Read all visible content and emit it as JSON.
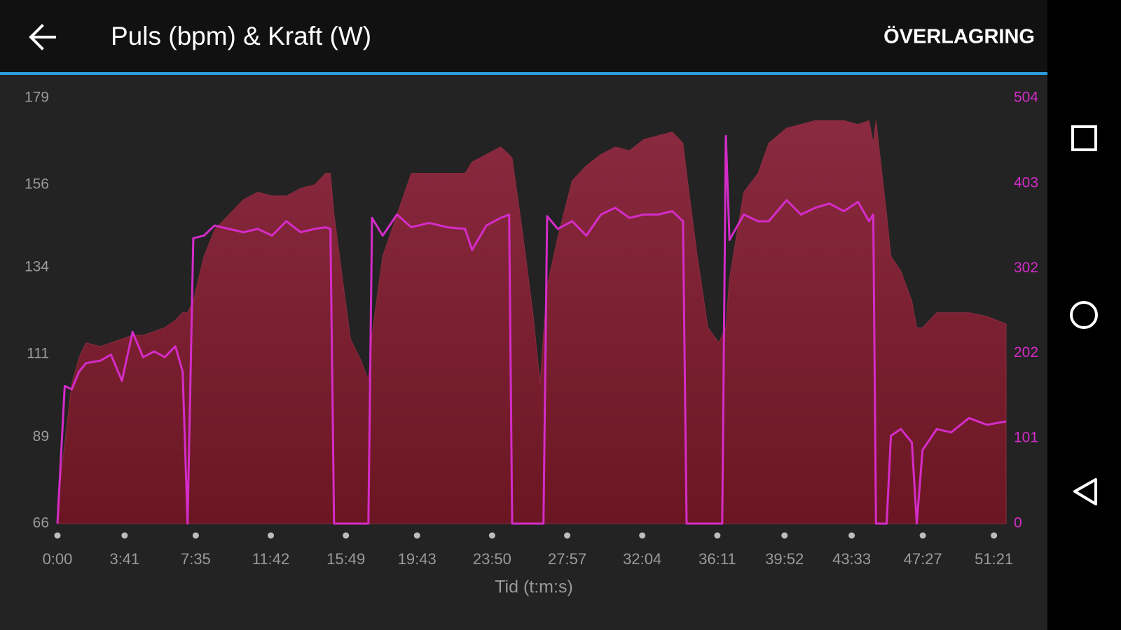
{
  "header": {
    "action": "ÖVERLAGRING"
  },
  "chart_data": {
    "type": "line",
    "title": "Puls (bpm) & Kraft (W)",
    "xlabel": "Tid (t:m:s)",
    "x": [
      0,
      24,
      47,
      71,
      94,
      141,
      176,
      212,
      247,
      282,
      318,
      353,
      388,
      412,
      428,
      447,
      482,
      517,
      564,
      612,
      659,
      706,
      753,
      800,
      847,
      882,
      898,
      910,
      941,
      964,
      1000,
      1023,
      1035,
      1070,
      1117,
      1164,
      1223,
      1282,
      1341,
      1364,
      1411,
      1458,
      1486,
      1496,
      1529,
      1564,
      1588,
      1599,
      1611,
      1646,
      1693,
      1740,
      1788,
      1835,
      1882,
      1929,
      1976,
      2023,
      2058,
      2070,
      2105,
      2140,
      2176,
      2187,
      2199,
      2211,
      2258,
      2305,
      2340,
      2399,
      2446,
      2493,
      2540,
      2587,
      2634,
      2670,
      2684,
      2693,
      2728,
      2742,
      2775,
      2811,
      2827,
      2846,
      2893,
      2940,
      2999,
      3058,
      3121
    ],
    "series": [
      {
        "type": "area",
        "color": "#8d2b42",
        "fill": [
          "#8a2a40",
          "#6b1622"
        ],
        "values": [
          71,
          87,
          103,
          110,
          114,
          113,
          114,
          115,
          116,
          116,
          117,
          118,
          120,
          122,
          122,
          125,
          137,
          144,
          148,
          152,
          154,
          153,
          153,
          155,
          156,
          159,
          159,
          148,
          129,
          115,
          109,
          104,
          116,
          137,
          148,
          159,
          159,
          159,
          159,
          162,
          164,
          166,
          164,
          163,
          144,
          122,
          103,
          116,
          129,
          142,
          157,
          161,
          164,
          166,
          165,
          168,
          169,
          170,
          167,
          159,
          137,
          118,
          114,
          116,
          118,
          131,
          154,
          159,
          167,
          171,
          172,
          173,
          173,
          173,
          172,
          173,
          167,
          173,
          148,
          137,
          133,
          125,
          118,
          118,
          122,
          122,
          122,
          121,
          119
        ]
      },
      {
        "type": "line",
        "axis": "y2",
        "color": "#d42cc8",
        "values": [
          0,
          163,
          159,
          180,
          190,
          193,
          200,
          169,
          227,
          197,
          204,
          197,
          210,
          180,
          0,
          338,
          341,
          353,
          349,
          345,
          349,
          341,
          358,
          345,
          349,
          351,
          349,
          0,
          0,
          0,
          0,
          0,
          362,
          341,
          366,
          351,
          356,
          351,
          349,
          324,
          353,
          362,
          366,
          0,
          0,
          0,
          0,
          0,
          364,
          349,
          358,
          341,
          366,
          374,
          362,
          366,
          366,
          370,
          358,
          0,
          0,
          0,
          0,
          0,
          459,
          336,
          366,
          358,
          358,
          383,
          366,
          374,
          379,
          370,
          381,
          358,
          366,
          0,
          0,
          104,
          112,
          96,
          0,
          87,
          112,
          108,
          125,
          117,
          121
        ]
      }
    ],
    "xlim": [
      0,
      3121
    ],
    "xticks": [
      {
        "value": 0,
        "label": "0:00"
      },
      {
        "value": 221,
        "label": "3:41"
      },
      {
        "value": 455,
        "label": "7:35"
      },
      {
        "value": 702,
        "label": "11:42"
      },
      {
        "value": 949,
        "label": "15:49"
      },
      {
        "value": 1183,
        "label": "19:43"
      },
      {
        "value": 1430,
        "label": "23:50"
      },
      {
        "value": 1677,
        "label": "27:57"
      },
      {
        "value": 1924,
        "label": "32:04"
      },
      {
        "value": 2171,
        "label": "36:11"
      },
      {
        "value": 2392,
        "label": "39:52"
      },
      {
        "value": 2613,
        "label": "43:33"
      },
      {
        "value": 2847,
        "label": "47:27"
      },
      {
        "value": 3081,
        "label": "51:21"
      }
    ],
    "ylim": [
      66,
      179
    ],
    "yticks": [
      66,
      89,
      111,
      134,
      156,
      179
    ],
    "y2lim": [
      0,
      504
    ],
    "y2ticks": [
      0,
      101,
      202,
      302,
      403,
      504
    ],
    "y2color": "#d42cc8"
  }
}
